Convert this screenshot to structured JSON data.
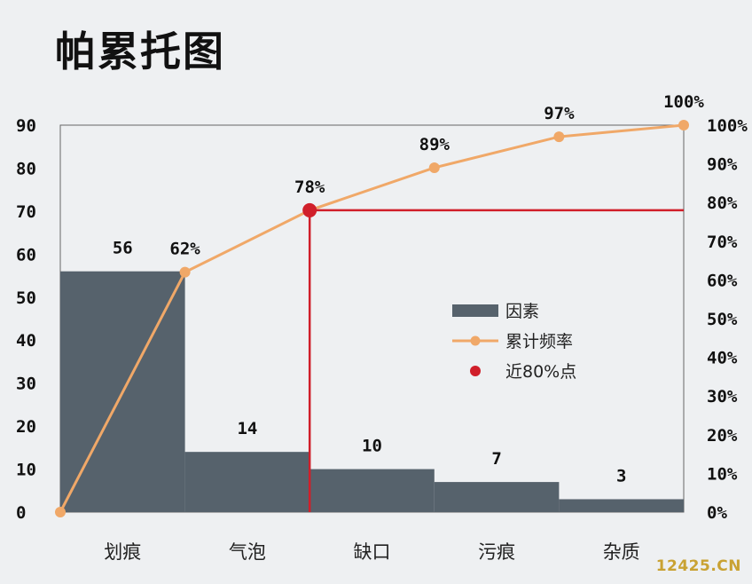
{
  "watermark": "12425.CN",
  "chart_data": {
    "type": "bar",
    "title": "帕累托图",
    "categories": [
      "划痕",
      "气泡",
      "缺口",
      "污痕",
      "杂质"
    ],
    "series": [
      {
        "name": "因素",
        "kind": "bar",
        "values": [
          56,
          14,
          10,
          7,
          3
        ],
        "labels": [
          "56",
          "14",
          "10",
          "7",
          "3"
        ],
        "color": "#56626c"
      },
      {
        "name": "累计频率",
        "kind": "line",
        "axis": "right",
        "x": [
          0,
          1,
          2,
          3,
          4,
          5
        ],
        "values": [
          0,
          62,
          78,
          89,
          97,
          100
        ],
        "labels": [
          "62%",
          "78%",
          "89%",
          "97%",
          "100%"
        ],
        "color": "#f0a868"
      },
      {
        "name": "近80%点",
        "kind": "marker",
        "x": 2,
        "value": 78,
        "color": "#d01f2a"
      }
    ],
    "ylim": [
      0,
      90
    ],
    "yticks": [
      "0",
      "10",
      "20",
      "30",
      "40",
      "50",
      "60",
      "70",
      "80",
      "90"
    ],
    "y2lim": [
      0,
      100
    ],
    "y2ticks": [
      "0%",
      "10%",
      "20%",
      "30%",
      "40%",
      "50%",
      "60%",
      "70%",
      "80%",
      "90%",
      "100%"
    ],
    "legend_position": "center-right",
    "grid": false
  }
}
